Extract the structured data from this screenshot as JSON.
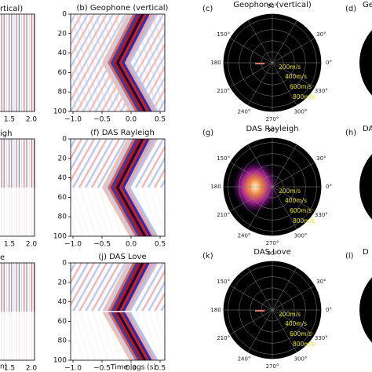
{
  "left_column": {
    "titles": [
      "rtical)",
      "igh",
      "e"
    ],
    "xticks": [
      "1.5",
      "2.0"
    ],
    "footer": "n)"
  },
  "time_panels": [
    {
      "title": "(b)  Geophone (vertical)"
    },
    {
      "title": "(f)  DAS Rayleigh"
    },
    {
      "title": "(j)  DAS Love"
    }
  ],
  "yticks": [
    "0",
    "20",
    "40",
    "60",
    "80",
    "100"
  ],
  "xticks": [
    "−1.0",
    "−0.5",
    "0.0",
    "0.5"
  ],
  "xlabel": "Time lags (s)",
  "polar_panels": [
    {
      "label": "(c)",
      "title": "Geophone (vertical)"
    },
    {
      "label": "(g)",
      "title": "DAS Rayleigh"
    },
    {
      "label": "(k)",
      "title": "DAS Love"
    }
  ],
  "angles": [
    "90°",
    "30°",
    "150°",
    "180",
    "0°",
    "210°",
    "330°",
    "240°",
    "270°",
    "300°"
  ],
  "speeds": [
    "200m/s",
    "400m/s",
    "600m/s",
    "800m/s"
  ],
  "right_column": {
    "labels": [
      "(d)",
      "(h)",
      "(l)"
    ],
    "titles": [
      "Geo",
      "DA",
      "D"
    ]
  }
}
